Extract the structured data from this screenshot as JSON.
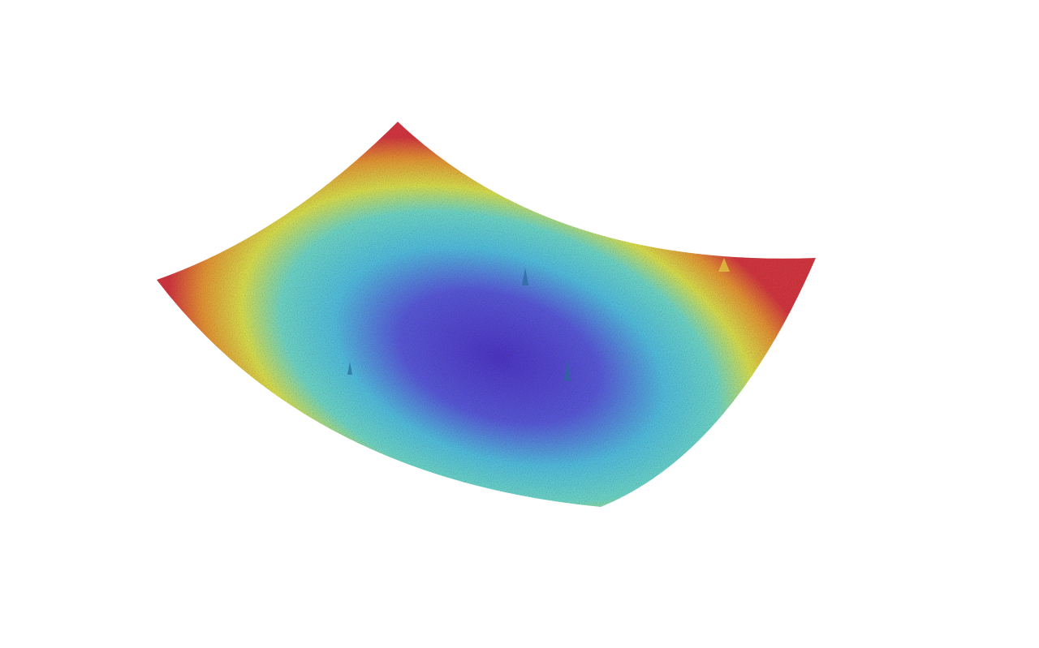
{
  "scene": {
    "subject": "3d-surface",
    "colormap": [
      "#4a2fd0",
      "#5656e6",
      "#4fc8ec",
      "#6ee2d2",
      "#e6ec4a",
      "#f39a2e",
      "#e0303a"
    ],
    "background": "#ffffff"
  }
}
